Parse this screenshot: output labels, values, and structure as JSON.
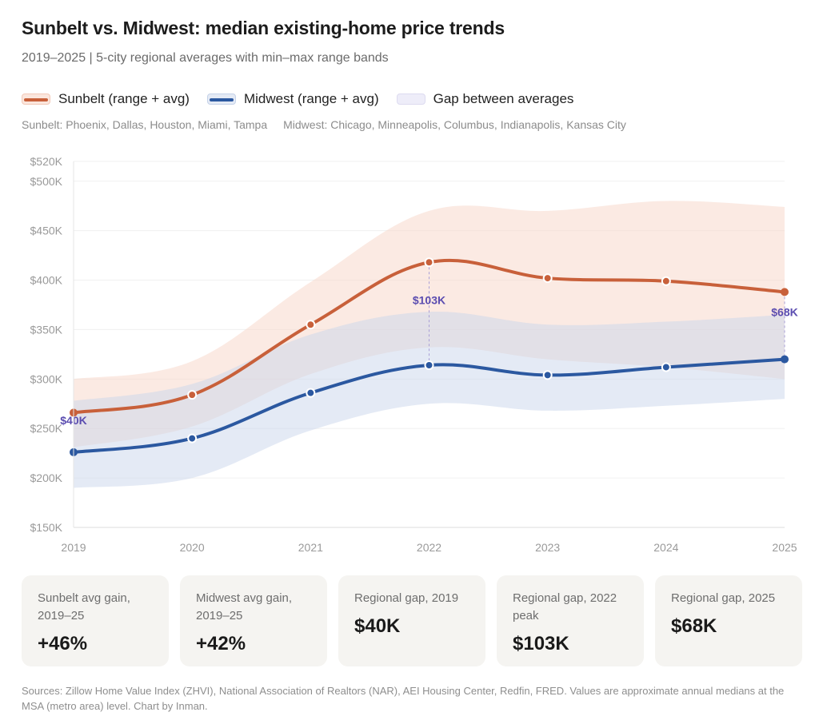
{
  "header": {
    "title": "Sunbelt vs. Midwest: median existing-home price trends",
    "subtitle": "2019–2025 | 5-city regional averages with min–max range bands"
  },
  "legend": {
    "items": [
      {
        "label": "Sunbelt (range + avg)",
        "line_color": "#c8603a",
        "fill_color": "#fbe6dd",
        "border_color": "#f2c9b8"
      },
      {
        "label": "Midwest (range + avg)",
        "line_color": "#2b58a0",
        "fill_color": "#e4eaf5",
        "border_color": "#c5d2e8"
      },
      {
        "label": "Gap between averages",
        "line_color": null,
        "fill_color": "#eeedf9",
        "border_color": "#dddbf0"
      }
    ],
    "cities": [
      "Sunbelt: Phoenix, Dallas, Houston, Miami, Tampa",
      "Midwest: Chicago, Minneapolis, Columbus, Indianapolis, Kansas City"
    ]
  },
  "chart_data": {
    "type": "line",
    "title": "Sunbelt vs. Midwest: median existing-home price trends",
    "subtitle": "2019–2025 | 5-city regional averages with min–max range bands",
    "xlabel": "",
    "ylabel": "",
    "x": [
      "2019",
      "2020",
      "2021",
      "2022",
      "2023",
      "2024",
      "2025"
    ],
    "ylim": [
      150,
      520
    ],
    "yunit": "thousand USD",
    "yticks": [
      150,
      200,
      250,
      300,
      350,
      400,
      450,
      500,
      520
    ],
    "ytick_labels": [
      "$150K",
      "$200K",
      "$250K",
      "$300K",
      "$350K",
      "$400K",
      "$450K",
      "$500K",
      "$520K"
    ],
    "grid": true,
    "legend_position": "top-left",
    "series": [
      {
        "name": "Sunbelt (range + avg)",
        "color": "#c8603a",
        "band_color": "#f7d9cc",
        "avg": [
          266,
          284,
          355,
          418,
          402,
          399,
          388
        ],
        "min": [
          231,
          252,
          305,
          332,
          320,
          312,
          300
        ],
        "max": [
          300,
          318,
          398,
          470,
          470,
          480,
          474
        ]
      },
      {
        "name": "Midwest (range + avg)",
        "color": "#2b58a0",
        "band_color": "#c9d5ec",
        "avg": [
          226,
          240,
          286,
          314,
          304,
          312,
          320
        ],
        "min": [
          190,
          200,
          248,
          275,
          268,
          273,
          280
        ],
        "max": [
          278,
          295,
          345,
          368,
          355,
          358,
          365
        ]
      }
    ],
    "annotations": [
      {
        "x": "2019",
        "label": "$40K",
        "gap": 40
      },
      {
        "x": "2022",
        "label": "$103K",
        "gap": 103
      },
      {
        "x": "2025",
        "label": "$68K",
        "gap": 68
      }
    ],
    "annotation_color": "#5b4db0"
  },
  "cards": [
    {
      "label": "Sunbelt avg gain, 2019–25",
      "value": "+46%"
    },
    {
      "label": "Midwest avg gain, 2019–25",
      "value": "+42%"
    },
    {
      "label": "Regional gap, 2019",
      "value": "$40K"
    },
    {
      "label": "Regional gap, 2022 peak",
      "value": "$103K"
    },
    {
      "label": "Regional gap, 2025",
      "value": "$68K"
    }
  ],
  "footer": {
    "sources": "Sources: Zillow Home Value Index (ZHVI), National Association of Realtors (NAR), AEI Housing Center, Redfin, FRED. Values are approximate annual medians at the MSA (metro area) level. Chart by Inman."
  }
}
